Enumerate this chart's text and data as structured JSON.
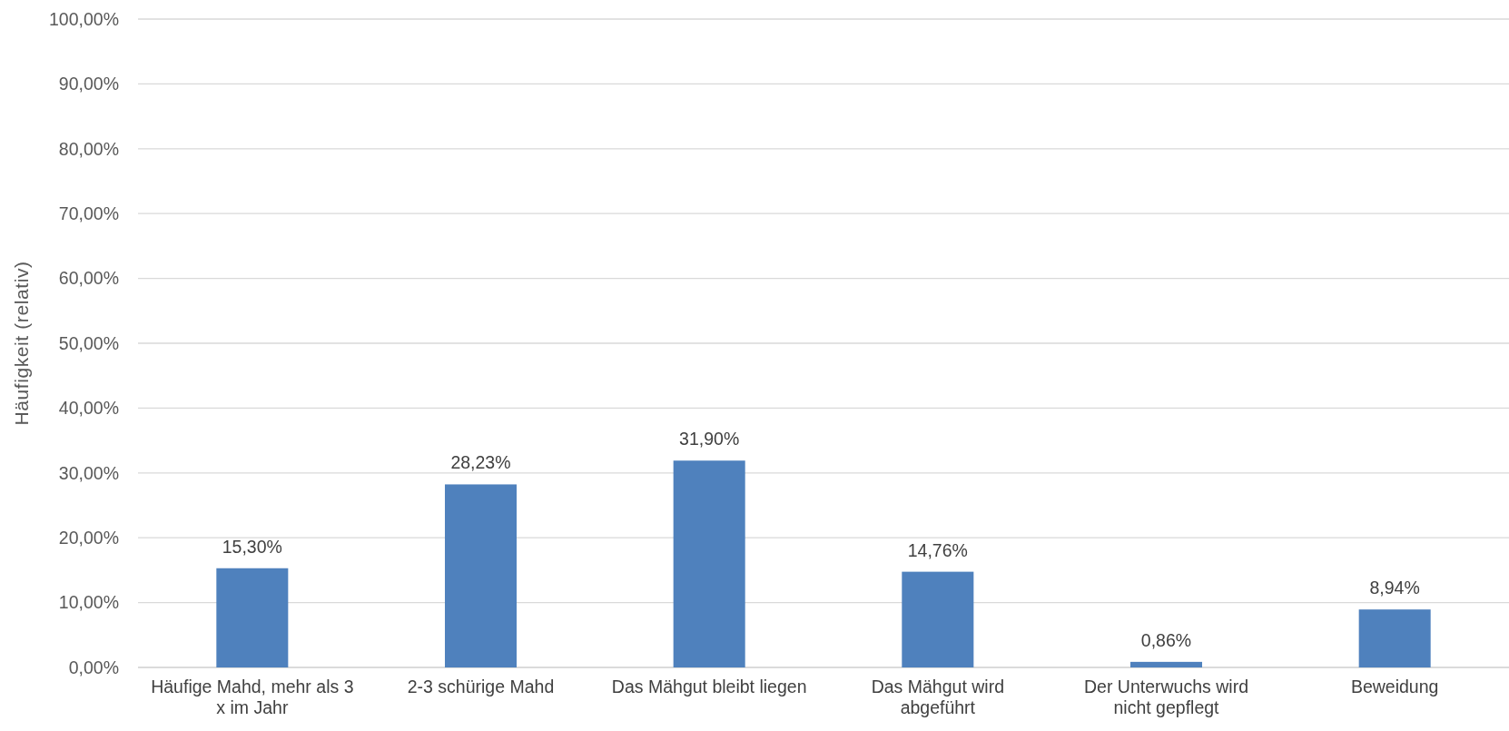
{
  "chart_data": {
    "type": "bar",
    "ylabel": "Häufigkeit (relativ)",
    "categories": [
      "Häufige Mahd, mehr als 3 x im Jahr",
      "2-3 schürige Mahd",
      "Das Mähgut bleibt liegen",
      "Das Mähgut wird abgeführt",
      "Der Unterwuchs wird nicht gepflegt",
      "Beweidung"
    ],
    "series": [
      {
        "color": "#4f81bd",
        "values": [
          15.3,
          28.23,
          31.9,
          14.76,
          0.86,
          8.94
        ],
        "value_labels": [
          "15,30%",
          "28,23%",
          "31,90%",
          "14,76%",
          "0,86%",
          "8,94%"
        ]
      }
    ],
    "ylim": [
      0,
      100
    ],
    "yticks": [
      {
        "value": 0,
        "label": "0,00%"
      },
      {
        "value": 10,
        "label": "10,00%"
      },
      {
        "value": 20,
        "label": "20,00%"
      },
      {
        "value": 30,
        "label": "30,00%"
      },
      {
        "value": 40,
        "label": "40,00%"
      },
      {
        "value": 50,
        "label": "50,00%"
      },
      {
        "value": 60,
        "label": "60,00%"
      },
      {
        "value": 70,
        "label": "70,00%"
      },
      {
        "value": 80,
        "label": "80,00%"
      },
      {
        "value": 90,
        "label": "90,00%"
      },
      {
        "value": 100,
        "label": "100,00%"
      }
    ],
    "grid": "y"
  }
}
